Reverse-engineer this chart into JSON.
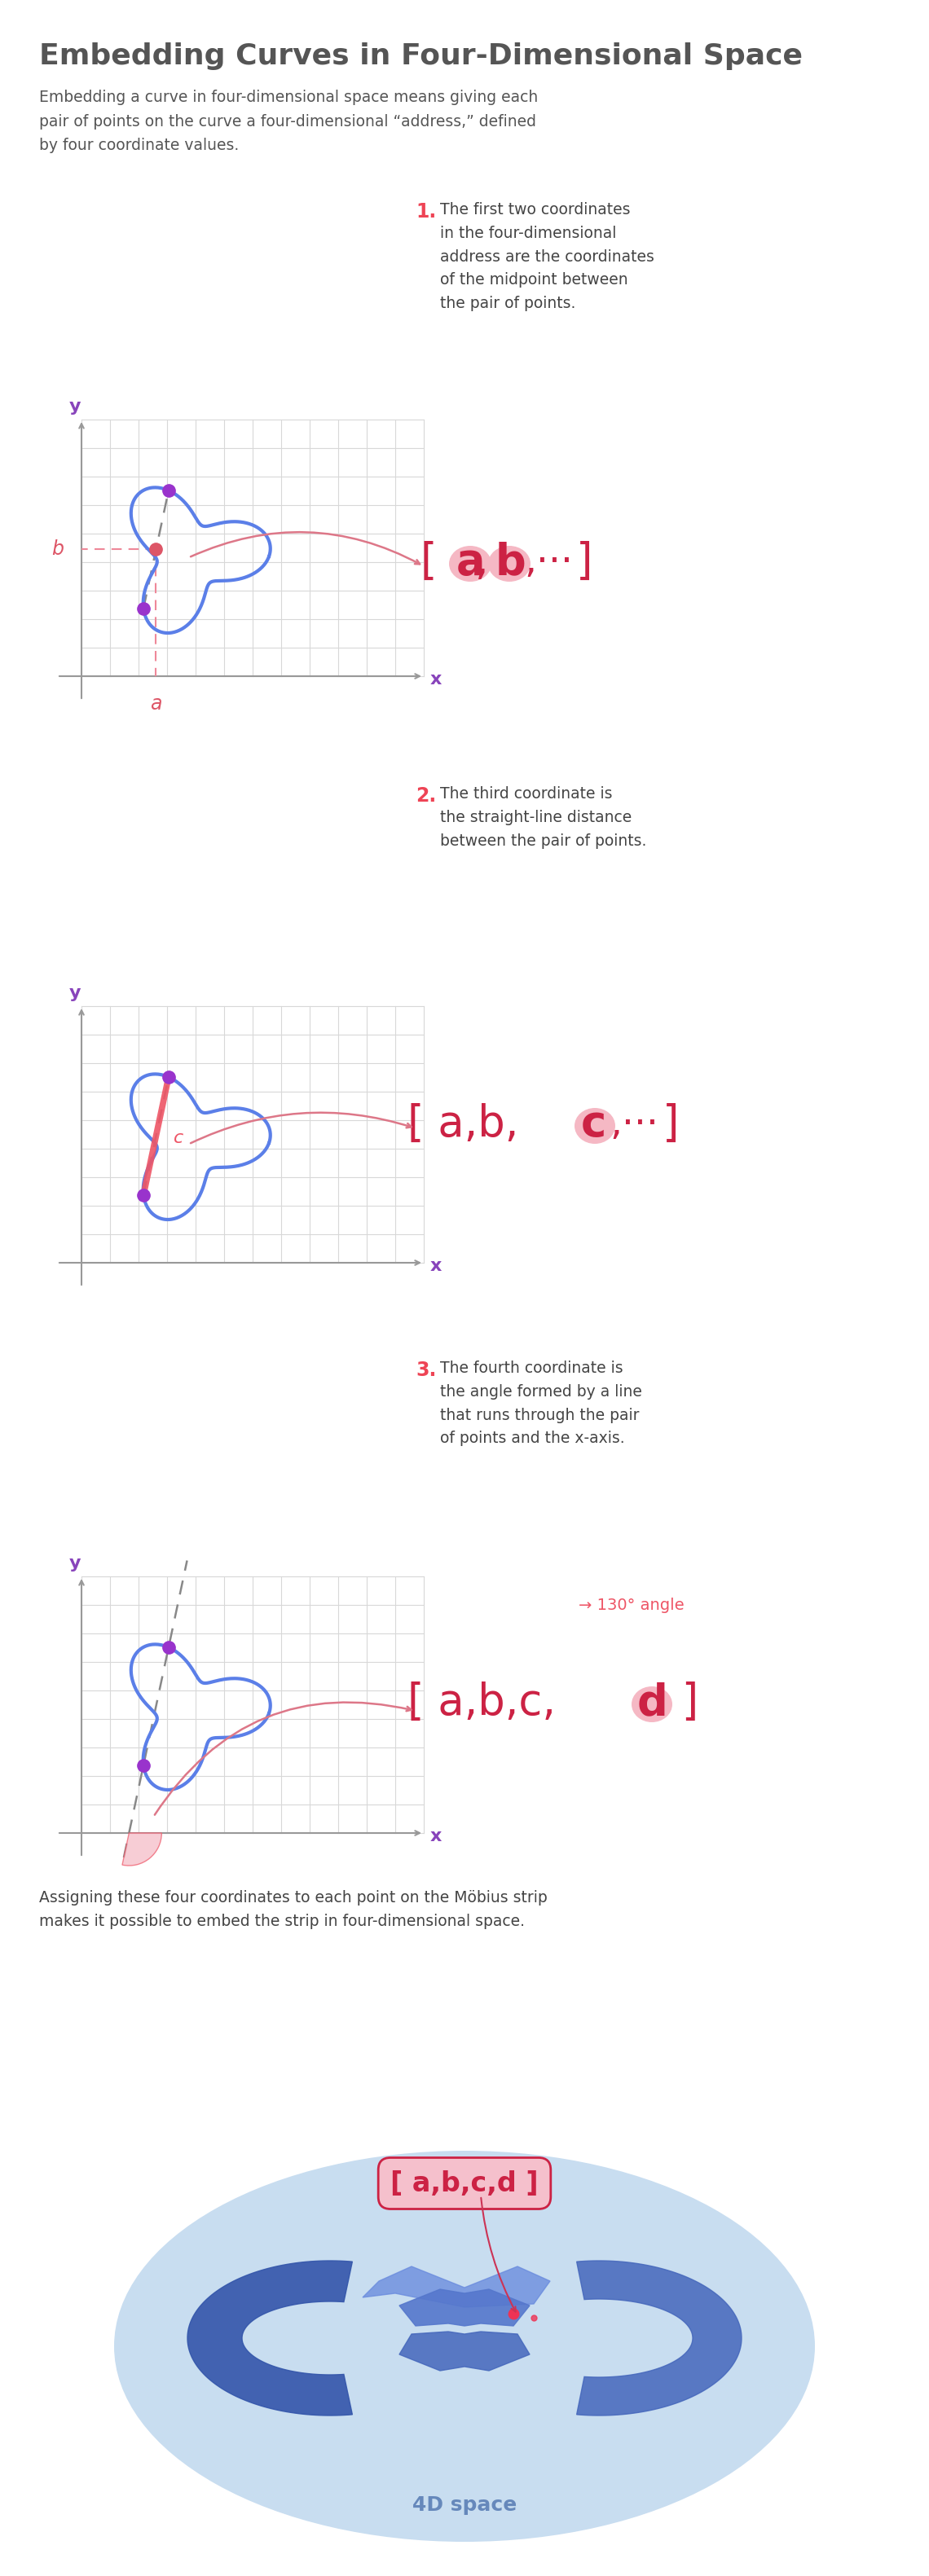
{
  "title": "Embedding Curves in Four-Dimensional Space",
  "subtitle": "Embedding a curve in four-dimensional space means giving each\npair of points on the curve a four-dimensional “address,” defined\nby four coordinate values.",
  "bg_color": "#ffffff",
  "curve_color": "#5b7fe8",
  "curve_lw": 3.0,
  "grid_color": "#d8d8d8",
  "axis_color": "#999999",
  "purple_dot_color": "#9933cc",
  "pink_dot_color": "#dd5566",
  "annotation_color": "#444444",
  "number_red": "#ee4455",
  "bracket_red": "#cc2244",
  "pink_arrow": "#dd7788",
  "pink_line": "#ee8899",
  "purple_axis": "#8844bb",
  "blue_oval": "#c8ddf0",
  "mobius_dark": "#2244aa",
  "mobius_mid": "#3366bb",
  "mobius_light": "#5588cc",
  "dot_red": "#ee3355",
  "fourD_blue": "#6688bb",
  "section1_num": "1.",
  "section1_text1": "The first two coordinates",
  "section1_text2": "in the four-dimensional",
  "section1_text3": "address are the coordinates",
  "section1_text4": "of the midpoint between",
  "section1_text5": "the pair of points.",
  "section2_num": "2.",
  "section2_text1": "The third coordinate is",
  "section2_text2": "the straight-line distance",
  "section2_text3": "between the pair of points.",
  "section3_num": "3.",
  "section3_text1": "The fourth coordinate is",
  "section3_text2": "the angle formed by a line",
  "section3_text3": "that runs through the pair",
  "section3_text4": "of points and the x-axis.",
  "bottom_text": "Assigning these four coordinates to each point on the Möbius strip\nmakes it possible to embed the strip in four-dimensional space.",
  "fourD_label": "4D space"
}
